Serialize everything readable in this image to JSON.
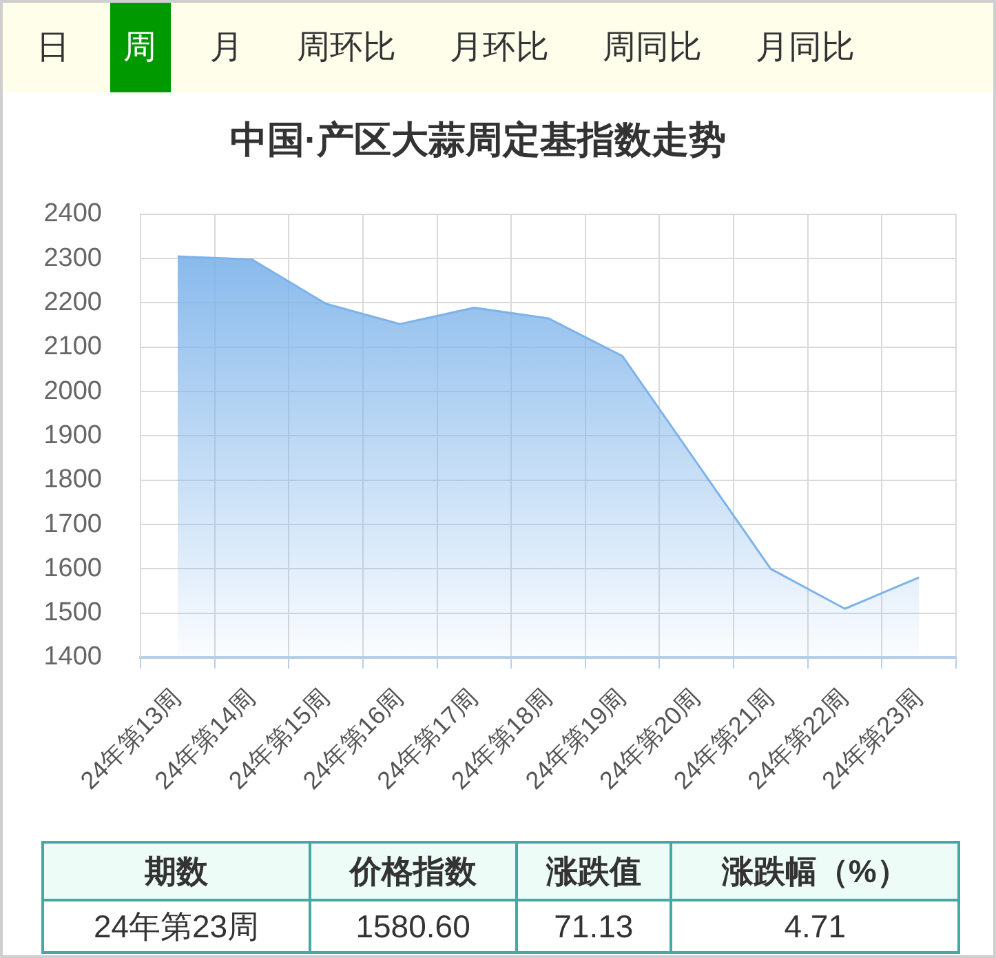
{
  "chart_data": {
    "type": "area",
    "title": "中国·产区大蒜周定基指数走势",
    "categories": [
      "24年第13周",
      "24年第14周",
      "24年第15周",
      "24年第16周",
      "24年第17周",
      "24年第18周",
      "24年第19周",
      "24年第20周",
      "24年第21周",
      "24年第22周",
      "24年第23周"
    ],
    "series": [
      {
        "color": "#7db3ea",
        "values": [
          2305,
          2298,
          2198,
          2152,
          2189,
          2165,
          2080,
          1840,
          1600,
          1510,
          1580.6
        ]
      }
    ],
    "ylim": [
      1400,
      2400
    ],
    "yticks": [
      1400,
      1500,
      1600,
      1700,
      1800,
      1900,
      2000,
      2100,
      2200,
      2300,
      2400
    ],
    "grid": true,
    "marker": "none",
    "annotations": [
      "日",
      "周",
      "月",
      "周环比",
      "月环比",
      "周同比",
      "月同比",
      "期数",
      "价格指数",
      "涨跌值",
      "涨跌幅（%）",
      "24年第23周",
      "1580.60",
      "71.13",
      "4.71"
    ]
  }
}
